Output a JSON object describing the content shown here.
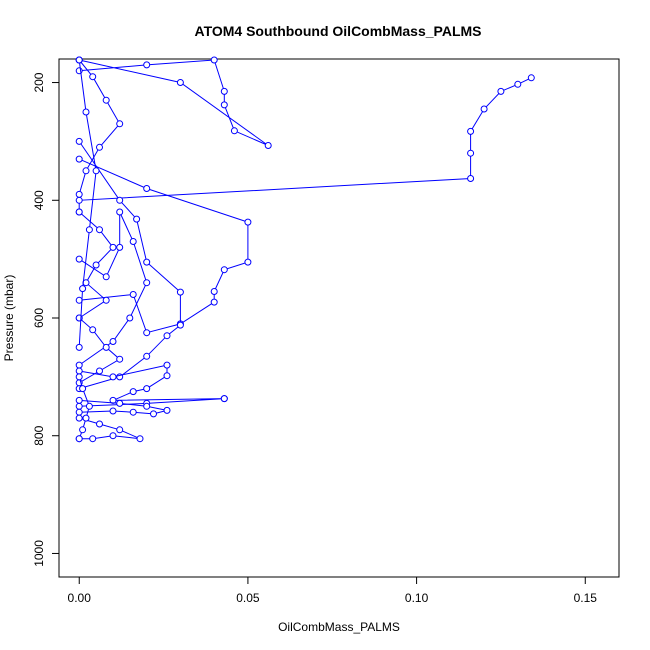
{
  "chart_data": {
    "type": "line",
    "title": "ATOM4 Southbound OilCombMass_PALMS",
    "xlabel": "OilCombMass_PALMS",
    "ylabel": "Pressure (mbar)",
    "xlim": [
      -0.006,
      0.16
    ],
    "ylim": [
      1040,
      160
    ],
    "y_reversed": true,
    "x_ticks": [
      0.0,
      0.05,
      0.1,
      0.15
    ],
    "x_tick_labels": [
      "0.00",
      "0.05",
      "0.10",
      "0.15"
    ],
    "y_ticks": [
      200,
      400,
      600,
      800,
      1000
    ],
    "y_tick_labels": [
      "200",
      "400",
      "600",
      "800",
      "1000"
    ],
    "grid": false,
    "marker": "open-circle",
    "color": "#0000ff",
    "series": [
      {
        "x": [
          0.134,
          0.13,
          0.125,
          0.12,
          0.116,
          0.116,
          0.116,
          0.0,
          0.0
        ],
        "y": [
          192,
          203,
          215,
          245,
          283,
          320,
          363,
          400,
          420
        ]
      },
      {
        "x": [
          0.0,
          0.03,
          0.056,
          0.046,
          0.043,
          0.043,
          0.04,
          0.02,
          0.0
        ],
        "y": [
          160,
          200,
          307,
          282,
          238,
          215,
          160,
          170,
          180
        ]
      },
      {
        "x": [
          0.0,
          0.02,
          0.05,
          0.05,
          0.043,
          0.04,
          0.04,
          0.03,
          0.02,
          0.016,
          0.0
        ],
        "y": [
          330,
          380,
          437,
          505,
          518,
          555,
          573,
          610,
          625,
          560,
          570
        ]
      },
      {
        "x": [
          0.0,
          0.012,
          0.017,
          0.02,
          0.03,
          0.03,
          0.026,
          0.02,
          0.012,
          0.0
        ],
        "y": [
          300,
          400,
          432,
          505,
          556,
          612,
          630,
          665,
          700,
          720
        ]
      },
      {
        "x": [
          0.0,
          0.008,
          0.012,
          0.012,
          0.016,
          0.02,
          0.015,
          0.01,
          0.0
        ],
        "y": [
          500,
          530,
          480,
          420,
          470,
          540,
          600,
          640,
          680
        ]
      },
      {
        "x": [
          0.0,
          0.01,
          0.026,
          0.026,
          0.02,
          0.016,
          0.01,
          0.043,
          0.043,
          0.02,
          0.0
        ],
        "y": [
          690,
          700,
          680,
          698,
          720,
          725,
          740,
          737,
          737,
          745,
          750
        ]
      },
      {
        "x": [
          0.0,
          0.012,
          0.02,
          0.026,
          0.022,
          0.016,
          0.01,
          0.0
        ],
        "y": [
          740,
          745,
          750,
          757,
          763,
          760,
          758,
          760
        ]
      },
      {
        "x": [
          0.0,
          0.006,
          0.012,
          0.018,
          0.01,
          0.004,
          0.0
        ],
        "y": [
          770,
          780,
          790,
          805,
          800,
          805,
          805
        ]
      },
      {
        "x": [
          0.0,
          0.004,
          0.008,
          0.012,
          0.006,
          0.002,
          0.0
        ],
        "y": [
          160,
          190,
          230,
          270,
          310,
          350,
          390
        ]
      },
      {
        "x": [
          0.0,
          0.006,
          0.01,
          0.005,
          0.002,
          0.008,
          0.0
        ],
        "y": [
          420,
          450,
          480,
          510,
          540,
          570,
          600
        ]
      },
      {
        "x": [
          0.0,
          0.004,
          0.008,
          0.012,
          0.006,
          0.0
        ],
        "y": [
          600,
          620,
          650,
          670,
          690,
          710
        ]
      },
      {
        "x": [
          0.0,
          0.002,
          0.005,
          0.003,
          0.001,
          0.0
        ],
        "y": [
          160,
          250,
          350,
          450,
          550,
          650
        ]
      },
      {
        "x": [
          0.0,
          0.001,
          0.003,
          0.002,
          0.001,
          0.0
        ],
        "y": [
          700,
          720,
          750,
          770,
          790,
          805
        ]
      }
    ]
  }
}
